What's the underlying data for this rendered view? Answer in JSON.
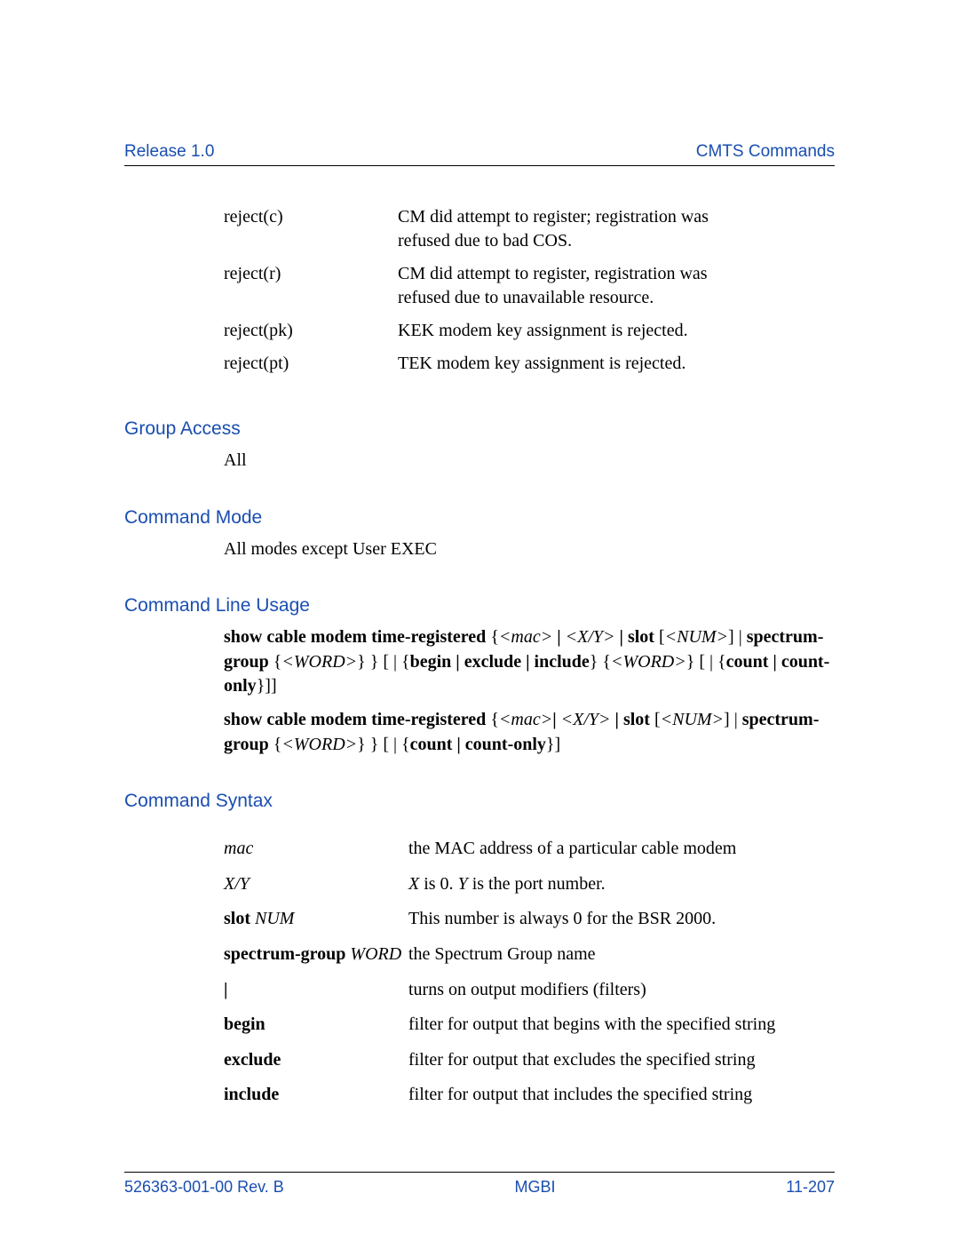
{
  "colors": {
    "accent_blue": "#1a4eb0",
    "text_black": "#000000",
    "background": "#ffffff",
    "rule": "#000000"
  },
  "fonts": {
    "body_family": "Times New Roman",
    "heading_family": "Arial",
    "body_size_pt": 15,
    "heading_size_pt": 16,
    "footer_size_pt": 13
  },
  "header": {
    "left": "Release 1.0",
    "right": "CMTS Commands"
  },
  "reject_defs": [
    {
      "term": "reject(c)",
      "desc": "CM did attempt to register; registration was refused due to bad COS."
    },
    {
      "term": "reject(r)",
      "desc": "CM did attempt to register, registration was refused due to unavailable resource."
    },
    {
      "term": "reject(pk)",
      "desc": "KEK modem key assignment is rejected."
    },
    {
      "term": "reject(pt)",
      "desc": "TEK modem key assignment is rejected."
    }
  ],
  "sections": {
    "group_access": {
      "title": "Group Access",
      "body": "All"
    },
    "command_mode": {
      "title": "Command Mode",
      "body": "All modes except User EXEC"
    },
    "command_line_usage": {
      "title": "Command Line Usage"
    },
    "command_syntax": {
      "title": "Command Syntax"
    }
  },
  "usage": {
    "line1": {
      "parts": [
        {
          "t": "show cable modem time-registered",
          "b": true
        },
        {
          "t": " {"
        },
        {
          "t": "<mac>",
          "i": true
        },
        {
          "t": " | ",
          "b": true
        },
        {
          "t": "<X/Y>",
          "i": true
        },
        {
          "t": " | ",
          "b": true
        },
        {
          "t": "slot",
          "b": true
        },
        {
          "t": "  ["
        },
        {
          "t": "<NUM>",
          "i": true
        },
        {
          "t": "] | "
        },
        {
          "t": "spectrum-group",
          "b": true
        },
        {
          "t": " {"
        },
        {
          "t": "<WORD>",
          "i": true
        },
        {
          "t": "} } [ | {"
        },
        {
          "t": "begin | exclude | include",
          "b": true
        },
        {
          "t": "} {"
        },
        {
          "t": "<WORD>",
          "i": true
        },
        {
          "t": "} [ | {"
        },
        {
          "t": "count | count-only",
          "b": true
        },
        {
          "t": "}]]"
        }
      ]
    },
    "line2": {
      "parts": [
        {
          "t": "show cable modem time-registered",
          "b": true
        },
        {
          "t": " {"
        },
        {
          "t": "<mac>",
          "i": true
        },
        {
          "t": "| ",
          "b": true
        },
        {
          "t": "<X/Y>",
          "i": true
        },
        {
          "t": " | ",
          "b": true
        },
        {
          "t": "slot",
          "b": true
        },
        {
          "t": "  ["
        },
        {
          "t": "<NUM>",
          "i": true
        },
        {
          "t": "] | "
        },
        {
          "t": "spectrum-group",
          "b": true
        },
        {
          "t": " {"
        },
        {
          "t": "<WORD>",
          "i": true
        },
        {
          "t": "} } [ | {"
        },
        {
          "t": "count | count-only",
          "b": true
        },
        {
          "t": "}]"
        }
      ]
    }
  },
  "syntax_rows": [
    {
      "term": [
        {
          "t": "mac",
          "i": true
        }
      ],
      "desc": [
        {
          "t": "the MAC address of a particular cable modem"
        }
      ]
    },
    {
      "term": [
        {
          "t": "X/Y",
          "i": true
        }
      ],
      "desc": [
        {
          "t": "X",
          "i": true
        },
        {
          "t": " is 0. "
        },
        {
          "t": "Y",
          "i": true
        },
        {
          "t": " is the port number."
        }
      ]
    },
    {
      "term": [
        {
          "t": "slot ",
          "b": true
        },
        {
          "t": "NUM",
          "i": true
        }
      ],
      "desc": [
        {
          "t": "This number is always 0 for the BSR 2000."
        }
      ]
    },
    {
      "term": [
        {
          "t": "spectrum-group ",
          "b": true
        },
        {
          "t": "WORD",
          "i": true
        }
      ],
      "desc": [
        {
          "t": "the Spectrum Group name"
        }
      ]
    },
    {
      "term": [
        {
          "t": "|",
          "b": true
        }
      ],
      "desc": [
        {
          "t": "turns on output modifiers (filters)"
        }
      ]
    },
    {
      "term": [
        {
          "t": "begin",
          "b": true
        }
      ],
      "desc": [
        {
          "t": "filter for output that begins with the specified string"
        }
      ]
    },
    {
      "term": [
        {
          "t": "exclude",
          "b": true
        }
      ],
      "desc": [
        {
          "t": "filter for output that excludes the specified string"
        }
      ]
    },
    {
      "term": [
        {
          "t": "include",
          "b": true
        }
      ],
      "desc": [
        {
          "t": "filter for output that includes the specified string"
        }
      ]
    }
  ],
  "footer": {
    "left": "526363-001-00 Rev. B",
    "center": "MGBI",
    "right": "11-207"
  }
}
